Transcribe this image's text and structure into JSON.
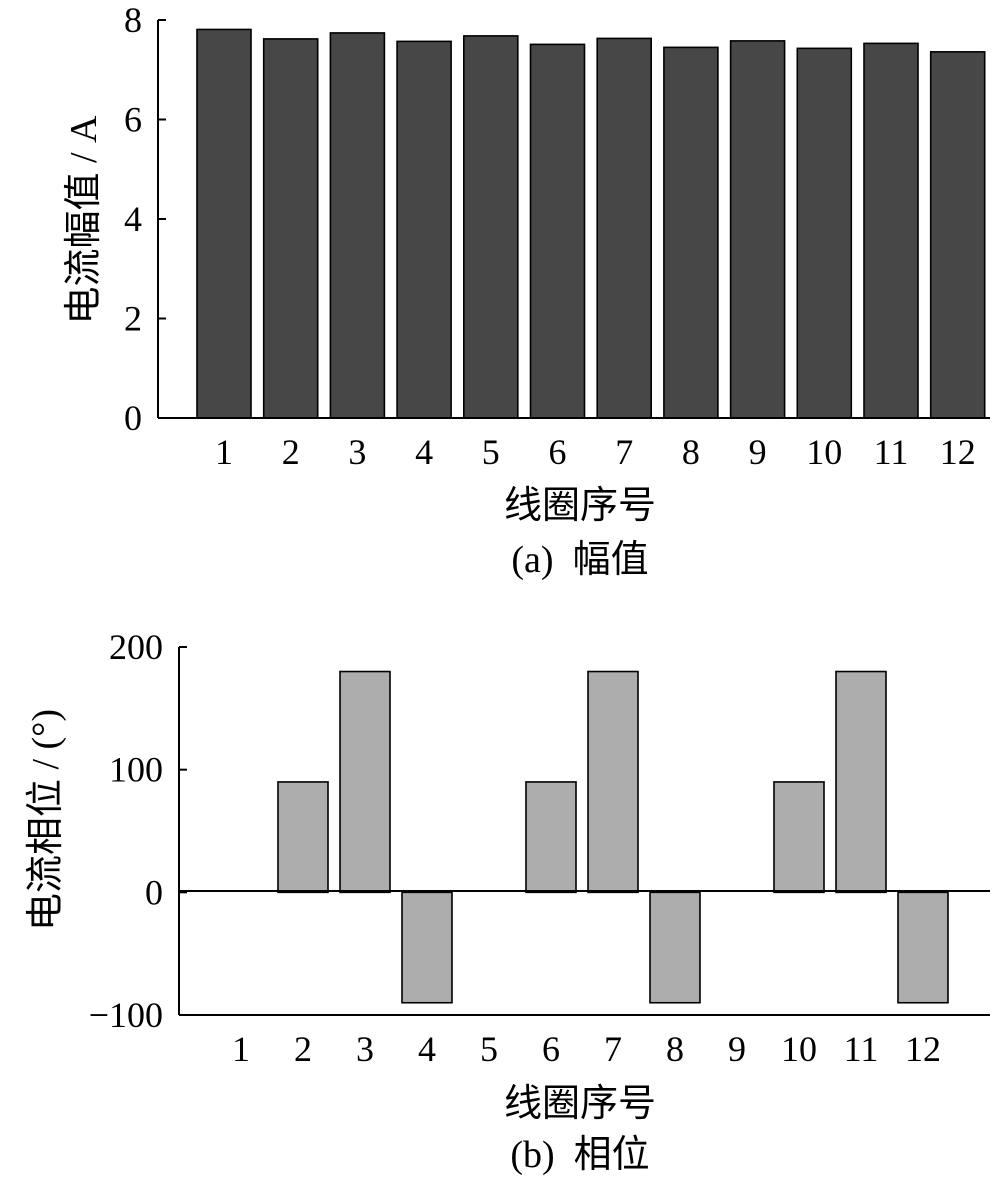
{
  "chart_data": [
    {
      "type": "bar",
      "title": "",
      "caption": "(a)  幅值",
      "xlabel": "线圈序号",
      "ylabel": "电流幅值 / A",
      "ylim": [
        0,
        8
      ],
      "yticks": [
        "0",
        "2",
        "4",
        "6",
        "8"
      ],
      "categories": [
        "1",
        "2",
        "3",
        "4",
        "5",
        "6",
        "7",
        "8",
        "9",
        "10",
        "11",
        "12"
      ],
      "values": [
        7.81,
        7.62,
        7.74,
        7.57,
        7.68,
        7.51,
        7.63,
        7.45,
        7.58,
        7.43,
        7.53,
        7.36
      ],
      "bar_color": "#474747"
    },
    {
      "type": "bar",
      "title": "",
      "caption": "(b)  相位",
      "xlabel": "线圈序号",
      "ylabel": "电流相位 / (°)",
      "ylim": [
        -100,
        200
      ],
      "yticks": [
        "−100",
        "0",
        "100",
        "200"
      ],
      "categories": [
        "1",
        "2",
        "3",
        "4",
        "5",
        "6",
        "7",
        "8",
        "9",
        "10",
        "11",
        "12"
      ],
      "values": [
        0,
        90,
        180,
        -90,
        0,
        90,
        180,
        -90,
        0,
        90,
        180,
        -90
      ],
      "bar_color": "#adadad"
    }
  ]
}
